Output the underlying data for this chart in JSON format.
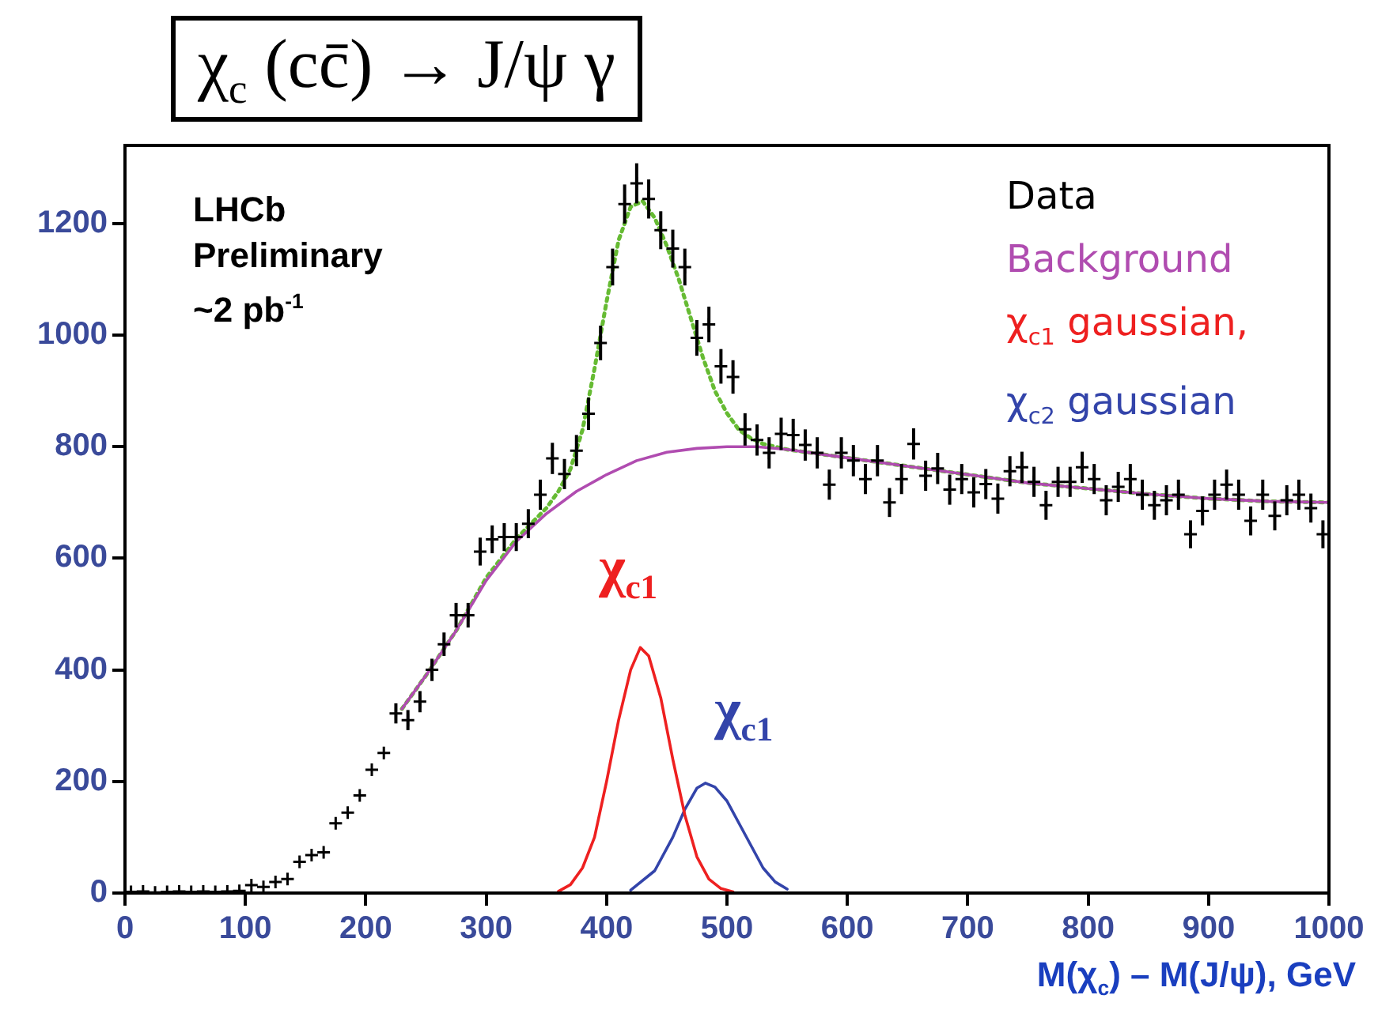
{
  "chart_data": {
    "type": "scatter",
    "title": "χ$_{c}$ (cc̄) → J/ψ γ",
    "xlabel": "M(χ$_{c}$) – M(J/ψ), GeV",
    "xlim": [
      0,
      1000
    ],
    "xticks": [
      0,
      100,
      200,
      300,
      400,
      500,
      600,
      700,
      800,
      900,
      1000
    ],
    "ylim": [
      0,
      1340
    ],
    "yticks": [
      0,
      200,
      400,
      600,
      800,
      1000,
      1200
    ],
    "grid": false,
    "legend": "top right",
    "annotations": [
      "LHCb\nPreliminary\n~2 pb$^{-1}$",
      "χ$_{c1}$",
      "χ$_{c1}$"
    ],
    "series": [
      {
        "name": "Data",
        "type": "scatter",
        "marker": "cross",
        "color": "#000000",
        "x": [
          5,
          15,
          25,
          35,
          45,
          55,
          65,
          75,
          85,
          95,
          105,
          115,
          125,
          135,
          145,
          155,
          165,
          175,
          185,
          195,
          205,
          215,
          225,
          235,
          245,
          255,
          265,
          275,
          285,
          295,
          305,
          315,
          325,
          335,
          345,
          355,
          365,
          375,
          385,
          395,
          405,
          415,
          425,
          435,
          445,
          455,
          465,
          475,
          485,
          495,
          505,
          515,
          525,
          535,
          545,
          555,
          565,
          575,
          585,
          595,
          605,
          615,
          625,
          635,
          645,
          655,
          665,
          675,
          685,
          695,
          705,
          715,
          725,
          735,
          745,
          755,
          765,
          775,
          785,
          795,
          805,
          815,
          825,
          835,
          845,
          855,
          865,
          875,
          885,
          895,
          905,
          915,
          925,
          935,
          945,
          955,
          965,
          975,
          985,
          995
        ],
        "values": [
          2,
          3,
          1,
          2,
          3,
          2,
          3,
          2,
          3,
          4,
          14,
          11,
          20,
          25,
          56,
          68,
          73,
          125,
          144,
          175,
          221,
          251,
          322,
          310,
          343,
          400,
          446,
          498,
          498,
          612,
          634,
          638,
          638,
          662,
          714,
          779,
          751,
          793,
          859,
          986,
          1122,
          1235,
          1272,
          1244,
          1188,
          1155,
          1122,
          995,
          1019,
          944,
          925,
          831,
          812,
          789,
          823,
          821,
          803,
          789,
          732,
          789,
          775,
          742,
          775,
          700,
          742,
          805,
          748,
          761,
          723,
          742,
          718,
          733,
          707,
          756,
          763,
          737,
          695,
          737,
          737,
          763,
          742,
          704,
          728,
          742,
          714,
          695,
          704,
          714,
          643,
          685,
          714,
          732,
          714,
          667,
          714,
          676,
          704,
          714,
          690,
          643
        ],
        "errors": [
          null,
          null,
          null,
          null,
          null,
          null,
          null,
          null,
          null,
          null,
          null,
          null,
          null,
          null,
          null,
          null,
          null,
          null,
          null,
          null,
          null,
          null,
          18,
          18,
          19,
          20,
          21,
          22,
          22,
          25,
          25,
          25,
          25,
          26,
          27,
          28,
          27,
          28,
          29,
          31,
          33,
          35,
          36,
          35,
          34,
          34,
          33,
          32,
          32,
          31,
          30,
          29,
          28,
          28,
          29,
          29,
          28,
          28,
          27,
          28,
          28,
          27,
          28,
          26,
          27,
          28,
          27,
          28,
          27,
          27,
          27,
          27,
          27,
          27,
          28,
          27,
          26,
          27,
          27,
          28,
          27,
          27,
          27,
          27,
          27,
          26,
          27,
          27,
          25,
          26,
          27,
          27,
          27,
          26,
          27,
          26,
          27,
          27,
          26,
          25
        ]
      },
      {
        "name": "Background",
        "type": "line",
        "color": "#b04cb0",
        "x": [
          230,
          250,
          275,
          300,
          325,
          350,
          375,
          400,
          425,
          450,
          475,
          500,
          525,
          550,
          600,
          650,
          700,
          750,
          800,
          850,
          900,
          950,
          1000
        ],
        "values": [
          330,
          390,
          470,
          560,
          630,
          680,
          720,
          750,
          775,
          790,
          797,
          800,
          800,
          795,
          780,
          765,
          750,
          735,
          725,
          715,
          707,
          702,
          700
        ]
      },
      {
        "type": "line",
        "line_style": "dotted",
        "color": "#66bb33",
        "x": [
          230,
          250,
          275,
          300,
          325,
          350,
          360,
          370,
          380,
          390,
          400,
          410,
          420,
          430,
          440,
          450,
          460,
          470,
          480,
          490,
          500,
          510,
          520,
          530,
          550,
          600,
          650,
          700,
          750,
          800,
          850,
          900,
          950,
          1000
        ],
        "values": [
          330,
          390,
          470,
          565,
          635,
          690,
          720,
          760,
          830,
          940,
          1060,
          1170,
          1230,
          1240,
          1210,
          1160,
          1100,
          1030,
          960,
          900,
          860,
          830,
          815,
          805,
          795,
          780,
          765,
          750,
          735,
          725,
          715,
          707,
          702,
          700
        ]
      },
      {
        "name": "χ$_{c1}$ gaussian,",
        "type": "line",
        "color": "#ee2020",
        "x": [
          360,
          370,
          380,
          390,
          400,
          410,
          420,
          428,
          435,
          445,
          455,
          465,
          475,
          485,
          495,
          505
        ],
        "values": [
          3,
          15,
          45,
          100,
          200,
          310,
          400,
          440,
          425,
          350,
          240,
          140,
          65,
          25,
          8,
          2
        ]
      },
      {
        "name": "χ$_{c2}$ gaussian",
        "type": "line",
        "color": "#3344aa",
        "x": [
          420,
          440,
          455,
          465,
          475,
          482,
          490,
          500,
          510,
          520,
          530,
          540,
          550
        ],
        "values": [
          5,
          40,
          100,
          150,
          188,
          197,
          190,
          165,
          125,
          85,
          45,
          20,
          7
        ]
      }
    ]
  }
}
